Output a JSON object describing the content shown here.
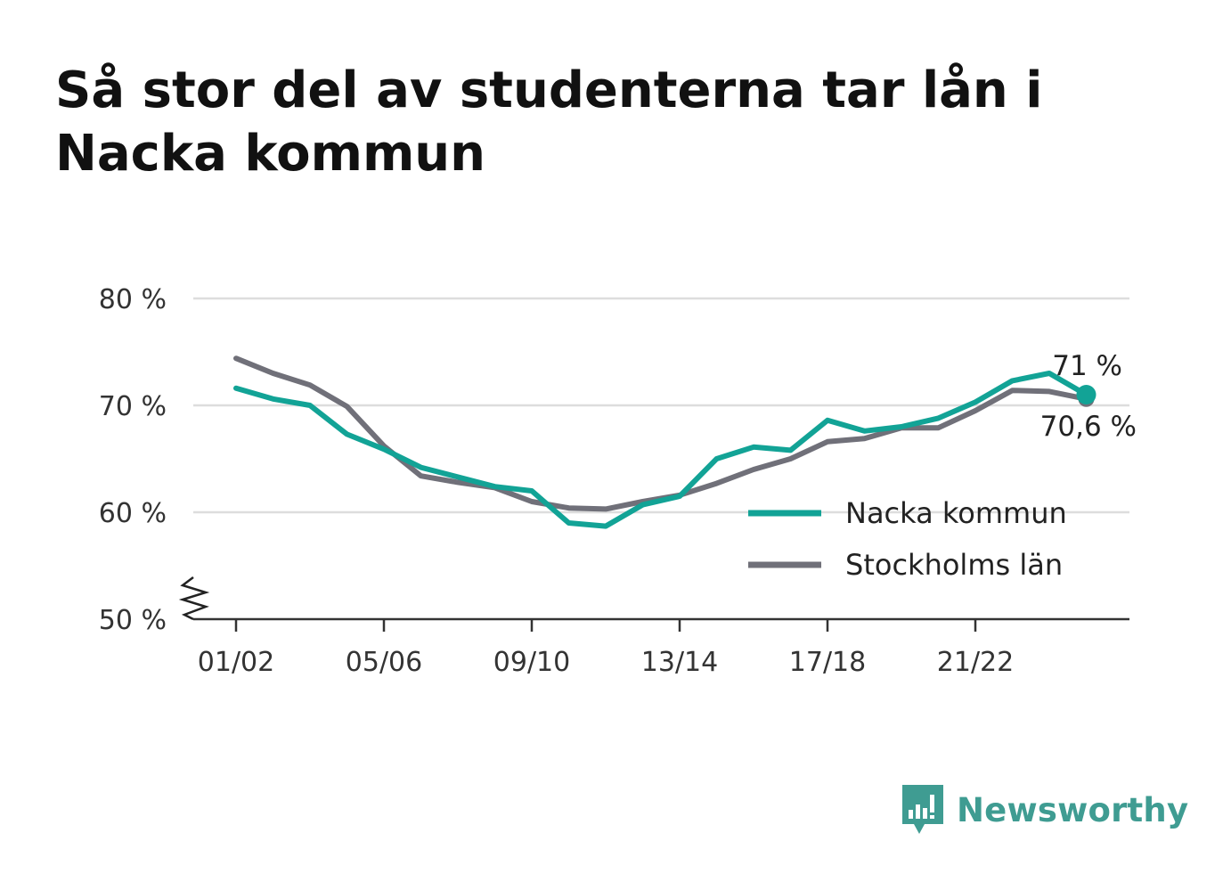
{
  "title": "Så stor del av studenterna tar lån i Nacka kommun",
  "brand": {
    "name": "Newsworthy",
    "icon": "newsworthy-logo-icon",
    "color": "#3f9c92"
  },
  "chart_data": {
    "type": "line",
    "title": "Så stor del av studenterna tar lån i Nacka kommun",
    "xlabel": "",
    "ylabel": "",
    "ylim": [
      50,
      80
    ],
    "y_ticks": [
      {
        "value": 80,
        "label": "80 %"
      },
      {
        "value": 70,
        "label": "70 %"
      },
      {
        "value": 60,
        "label": "60 %"
      },
      {
        "value": 50,
        "label": "50 %"
      }
    ],
    "y_axis_break": true,
    "grid": true,
    "legend_position": "bottom-right",
    "x": [
      "01/02",
      "02/03",
      "03/04",
      "04/05",
      "05/06",
      "06/07",
      "07/08",
      "08/09",
      "09/10",
      "10/11",
      "11/12",
      "12/13",
      "13/14",
      "14/15",
      "15/16",
      "16/17",
      "17/18",
      "18/19",
      "19/20",
      "20/21",
      "21/22",
      "22/23",
      "23/24",
      "24/25"
    ],
    "x_tick_labels": [
      "01/02",
      "05/06",
      "09/10",
      "13/14",
      "17/18",
      "21/22"
    ],
    "series": [
      {
        "name": "Nacka kommun",
        "color": "#12a396",
        "values": [
          71.6,
          70.6,
          70.0,
          67.3,
          65.9,
          64.2,
          63.3,
          62.4,
          62.0,
          59.0,
          58.7,
          60.7,
          61.5,
          65.0,
          66.1,
          65.8,
          68.6,
          67.6,
          68.0,
          68.8,
          70.3,
          72.3,
          73.0,
          71.0
        ],
        "end_label": "71 %"
      },
      {
        "name": "Stockholms län",
        "color": "#707079",
        "values": [
          74.4,
          73.0,
          71.9,
          69.9,
          66.2,
          63.4,
          62.8,
          62.3,
          61.0,
          60.4,
          60.3,
          61.0,
          61.6,
          62.7,
          64.0,
          65.0,
          66.6,
          66.9,
          67.9,
          67.9,
          69.5,
          71.4,
          71.3,
          70.6
        ],
        "end_label": "70,6 %"
      }
    ]
  }
}
